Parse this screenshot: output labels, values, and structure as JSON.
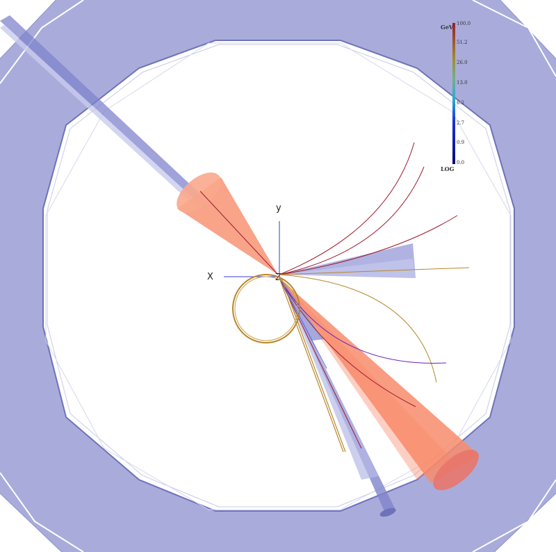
{
  "axes": {
    "x_label": "X",
    "y_label": "y",
    "z_label": "Z"
  },
  "energy_scale": {
    "unit": "GeV",
    "mode": "LOG",
    "ticks": [
      "100.0",
      "51.2",
      "26.0",
      "13.0",
      "6.2",
      "2.7",
      "0.9",
      "0.0"
    ],
    "colors": [
      "#9b1c2e",
      "#b3324a",
      "#a58a2c",
      "#4fa0b0",
      "#2aa8d8",
      "#1c4fd6",
      "#1a1ab0",
      "#0c0c6a"
    ]
  },
  "colors": {
    "detector": "#a9acdb",
    "detector_edge": "#8d91c9",
    "jet": "#f78c6c",
    "muon_chamber_track": "#9a9ed6",
    "track_red": "#a0182c",
    "track_gold": "#b8862a",
    "track_purple": "#6a22b8"
  }
}
